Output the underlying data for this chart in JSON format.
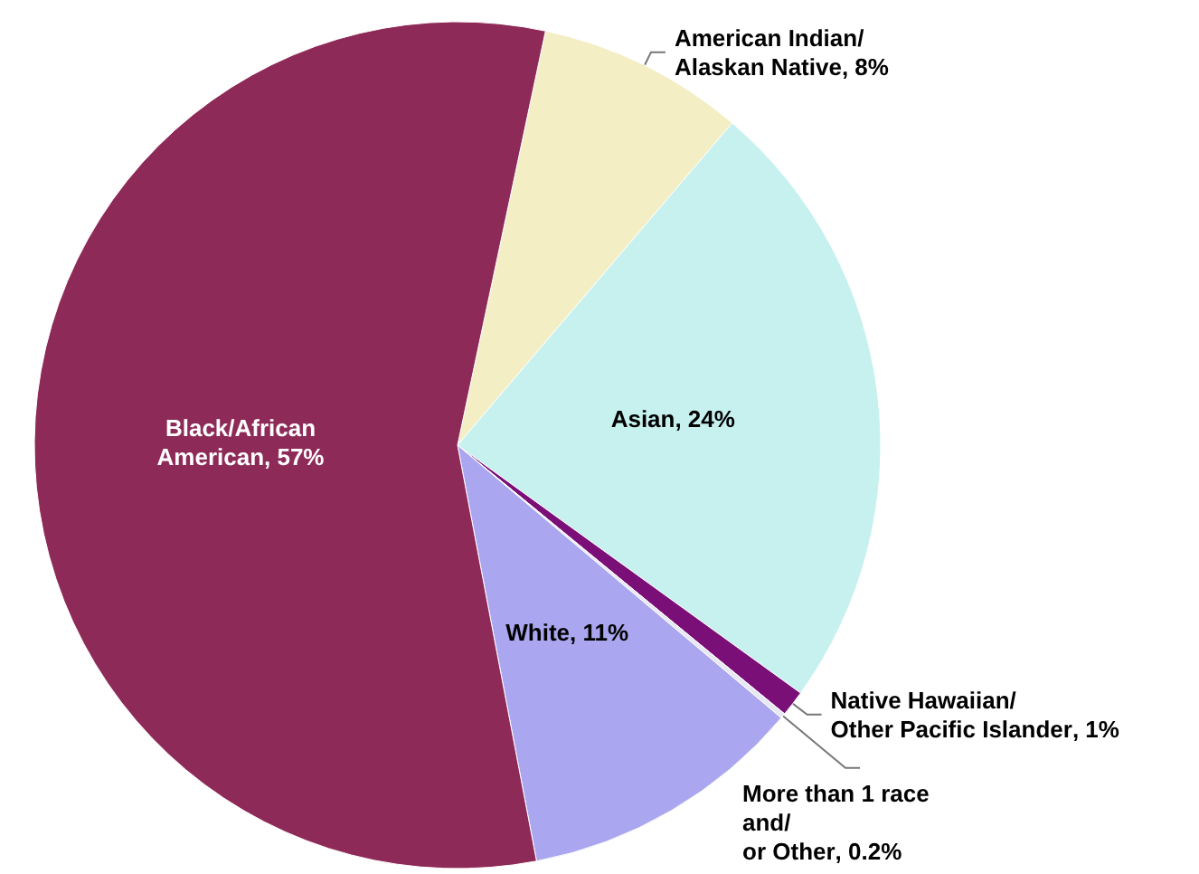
{
  "chart_data": {
    "type": "pie",
    "categories": [
      "American Indian/Alaskan Native",
      "Asian",
      "Native Hawaiian/Other Pacific Islander",
      "More than 1 race and/or Other",
      "White",
      "Black/African American"
    ],
    "values": [
      8,
      24,
      1,
      0.2,
      11,
      57
    ],
    "colors": [
      "#f3eec4",
      "#c6f1ef",
      "#7a0f78",
      "#e8e8f4",
      "#aaa6f0",
      "#8e2a58"
    ],
    "value_labels": [
      ", 8%",
      ", 24%",
      ", 1%",
      ", 0.2%",
      ", 11%",
      ", 57%"
    ],
    "legend": false
  }
}
